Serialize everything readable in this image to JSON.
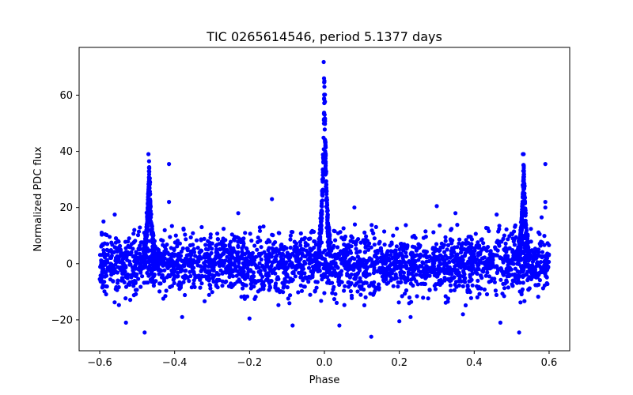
{
  "chart_data": {
    "type": "scatter",
    "title": "TIC 0265614546, period 5.1377 days",
    "xlabel": "Phase",
    "ylabel": "Normalized PDC flux",
    "xlim": [
      -0.655,
      0.655
    ],
    "ylim": [
      -31,
      77
    ],
    "x_ticks": [
      -0.6,
      -0.4,
      -0.2,
      0.0,
      0.2,
      0.4,
      0.6
    ],
    "x_tick_labels": [
      "−0.6",
      "−0.4",
      "−0.2",
      "0.0",
      "0.2",
      "0.4",
      "0.6"
    ],
    "y_ticks": [
      -20,
      0,
      20,
      40,
      60
    ],
    "y_tick_labels": [
      "−20",
      "0",
      "20",
      "40",
      "60"
    ],
    "grid": false,
    "marker_color": "#0000ff",
    "series": [
      {
        "name": "PDC flux",
        "description": "Phase-folded light curve; dense noise band roughly -12 to +12 with flare peaks at phase ~0.0 (to ~72), ~-0.47 and ~0.53 (to ~39)",
        "phase_range": [
          -0.6,
          0.6
        ],
        "noise_band": [
          -12,
          12
        ],
        "peaks": [
          {
            "phase": -0.468,
            "height": 39
          },
          {
            "phase": 0.0,
            "height": 72
          },
          {
            "phase": 0.532,
            "height": 39
          }
        ],
        "points": [
          {
            "x": -0.002,
            "y": 71.8
          },
          {
            "x": -0.001,
            "y": 66.0
          },
          {
            "x": 0.0,
            "y": 63.0
          },
          {
            "x": -0.47,
            "y": 39.0
          },
          {
            "x": 0.53,
            "y": 39.0
          },
          {
            "x": -0.415,
            "y": 35.5
          },
          {
            "x": 0.59,
            "y": 35.5
          },
          {
            "x": -0.14,
            "y": 23.0
          },
          {
            "x": -0.415,
            "y": 22.0
          },
          {
            "x": 0.59,
            "y": 22.0
          },
          {
            "x": 0.59,
            "y": 20.0
          },
          {
            "x": 0.3,
            "y": 20.5
          },
          {
            "x": 0.08,
            "y": 20.0
          },
          {
            "x": -0.23,
            "y": 18.0
          },
          {
            "x": -0.56,
            "y": 17.5
          },
          {
            "x": 0.58,
            "y": 16.5
          },
          {
            "x": 0.46,
            "y": 17.5
          },
          {
            "x": 0.35,
            "y": 18.0
          },
          {
            "x": -0.59,
            "y": 15.0
          },
          {
            "x": 0.125,
            "y": -26.0
          },
          {
            "x": -0.48,
            "y": -24.5
          },
          {
            "x": 0.52,
            "y": -24.5
          },
          {
            "x": -0.085,
            "y": -22.0
          },
          {
            "x": 0.04,
            "y": -22.0
          },
          {
            "x": -0.53,
            "y": -21.0
          },
          {
            "x": 0.47,
            "y": -21.0
          },
          {
            "x": -0.2,
            "y": -19.5
          },
          {
            "x": 0.23,
            "y": -19.0
          },
          {
            "x": -0.38,
            "y": -19.0
          },
          {
            "x": 0.37,
            "y": -18.0
          },
          {
            "x": 0.2,
            "y": -20.5
          }
        ]
      }
    ]
  }
}
